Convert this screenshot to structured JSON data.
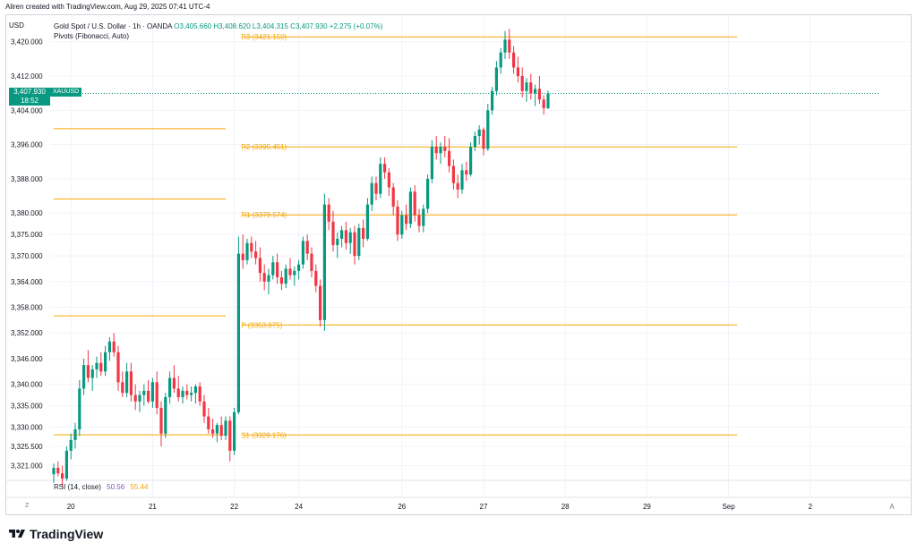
{
  "header": {
    "caption": "Aliren created with TradingView.com, Aug 29, 2025 07:41 UTC-4"
  },
  "legend": {
    "symbol_line": "Gold Spot / U.S. Dollar · 1h · OANDA",
    "ohlc": "O3,405.660  H3,408.620  L3,404.315  C3,407.930  +2.275 (+0.07%)",
    "indicator": "Pivots (Fibonacci, Auto)"
  },
  "currency": "USD",
  "price_tag": {
    "price": "3,407.930",
    "countdown": "18:52",
    "symbol": "XAUUSD"
  },
  "rsi": {
    "label": "RSI (14, close)",
    "value1": "50.56",
    "value2": "55.44"
  },
  "bottom": {
    "tz": "Z",
    "auto": "A"
  },
  "brand": {
    "name": "TradingView"
  },
  "colors": {
    "up": "#089981",
    "down": "#f23645",
    "pivot": "#f7a600",
    "last_price": "#089981",
    "grid": "#f0f3fa"
  },
  "chart_data": {
    "type": "candlestick",
    "title": "Gold Spot / U.S. Dollar · 1h · OANDA",
    "ylim": [
      3318,
      3426
    ],
    "y_ticks": [
      {
        "label": "3,420.000",
        "value": 3420
      },
      {
        "label": "3,412.000",
        "value": 3412
      },
      {
        "label": "3,404.000",
        "value": 3404
      },
      {
        "label": "3,396.000",
        "value": 3396
      },
      {
        "label": "3,388.000",
        "value": 3388
      },
      {
        "label": "3,380.000",
        "value": 3380
      },
      {
        "label": "3,375.000",
        "value": 3375
      },
      {
        "label": "3,370.000",
        "value": 3370
      },
      {
        "label": "3,364.000",
        "value": 3364
      },
      {
        "label": "3,358.000",
        "value": 3358
      },
      {
        "label": "3,352.000",
        "value": 3352
      },
      {
        "label": "3,346.000",
        "value": 3346
      },
      {
        "label": "3,340.000",
        "value": 3340
      },
      {
        "label": "3,335.000",
        "value": 3335
      },
      {
        "label": "3,330.000",
        "value": 3330
      },
      {
        "label": "3,325.500",
        "value": 3325.5
      },
      {
        "label": "3,321.000",
        "value": 3321
      }
    ],
    "x_ticks": [
      {
        "label": "20",
        "index": 4
      },
      {
        "label": "21",
        "index": 23
      },
      {
        "label": "22",
        "index": 42
      },
      {
        "label": "24",
        "index": 57
      },
      {
        "label": "26",
        "index": 81
      },
      {
        "label": "27",
        "index": 100
      },
      {
        "label": "28",
        "index": 119
      },
      {
        "label": "29",
        "index": 138
      },
      {
        "label": "Sep",
        "index": 157
      },
      {
        "label": "2",
        "index": 176
      },
      {
        "label": "A",
        "index": 195
      }
    ],
    "pivots": [
      {
        "label": "R3 (3421.150)",
        "value": 3421.15,
        "from": 44,
        "to": 159
      },
      {
        "label": "R2 (3395.451)",
        "value": 3395.451,
        "from": 44,
        "to": 159
      },
      {
        "label": "R1 (3379.574)",
        "value": 3379.574,
        "from": 44,
        "to": 159
      },
      {
        "label": "P (3353.875)",
        "value": 3353.875,
        "from": 44,
        "to": 159
      },
      {
        "label": "S1 (3328.176)",
        "value": 3328.176,
        "from": 44,
        "to": 159
      },
      {
        "label": "",
        "value": 3399.7,
        "from": 0,
        "to": 40
      },
      {
        "label": "",
        "value": 3383.3,
        "from": 0,
        "to": 40
      },
      {
        "label": "",
        "value": 3356.0,
        "from": 0,
        "to": 40
      },
      {
        "label": "",
        "value": 3328.2,
        "from": 0,
        "to": 40
      }
    ],
    "last_price": 3407.93,
    "candles": [
      [
        3319.0,
        3321.5,
        3317.0,
        3320.5
      ],
      [
        3320.5,
        3322.0,
        3318.5,
        3319.2
      ],
      [
        3319.2,
        3321.0,
        3316.0,
        3318.0
      ],
      [
        3318.0,
        3325.5,
        3317.5,
        3324.5
      ],
      [
        3324.5,
        3328.5,
        3322.5,
        3327.0
      ],
      [
        3327.0,
        3331.0,
        3325.0,
        3329.5
      ],
      [
        3329.5,
        3341.0,
        3328.0,
        3339.0
      ],
      [
        3339.0,
        3346.0,
        3337.5,
        3344.5
      ],
      [
        3344.5,
        3348.0,
        3340.5,
        3341.5
      ],
      [
        3341.5,
        3344.5,
        3338.5,
        3343.5
      ],
      [
        3343.5,
        3346.5,
        3341.5,
        3345.0
      ],
      [
        3345.0,
        3347.5,
        3342.0,
        3343.0
      ],
      [
        3343.0,
        3349.0,
        3342.0,
        3347.5
      ],
      [
        3347.5,
        3351.0,
        3345.5,
        3350.0
      ],
      [
        3350.0,
        3352.0,
        3346.5,
        3347.5
      ],
      [
        3347.5,
        3349.0,
        3338.5,
        3340.5
      ],
      [
        3340.5,
        3343.0,
        3337.0,
        3338.0
      ],
      [
        3338.0,
        3345.0,
        3337.0,
        3343.0
      ],
      [
        3343.0,
        3345.0,
        3336.0,
        3337.5
      ],
      [
        3337.5,
        3340.0,
        3334.0,
        3336.0
      ],
      [
        3336.0,
        3338.5,
        3333.5,
        3337.5
      ],
      [
        3337.5,
        3340.0,
        3335.0,
        3338.5
      ],
      [
        3338.5,
        3341.0,
        3335.5,
        3336.0
      ],
      [
        3336.0,
        3341.5,
        3334.5,
        3340.5
      ],
      [
        3340.5,
        3343.0,
        3333.0,
        3334.5
      ],
      [
        3334.5,
        3336.0,
        3325.5,
        3328.5
      ],
      [
        3328.5,
        3338.0,
        3327.5,
        3337.0
      ],
      [
        3337.0,
        3343.0,
        3335.5,
        3341.5
      ],
      [
        3341.5,
        3344.5,
        3338.0,
        3339.0
      ],
      [
        3339.0,
        3342.0,
        3336.0,
        3337.0
      ],
      [
        3337.0,
        3339.5,
        3335.5,
        3338.5
      ],
      [
        3338.5,
        3340.0,
        3336.5,
        3337.5
      ],
      [
        3337.5,
        3339.5,
        3336.0,
        3338.0
      ],
      [
        3338.0,
        3340.0,
        3335.5,
        3339.5
      ],
      [
        3339.5,
        3340.5,
        3335.0,
        3336.0
      ],
      [
        3336.0,
        3337.5,
        3331.0,
        3332.5
      ],
      [
        3332.5,
        3334.5,
        3328.5,
        3329.5
      ],
      [
        3329.5,
        3332.0,
        3327.5,
        3328.5
      ],
      [
        3328.5,
        3331.0,
        3326.5,
        3330.5
      ],
      [
        3330.5,
        3332.5,
        3327.0,
        3328.0
      ],
      [
        3328.0,
        3332.5,
        3327.0,
        3331.5
      ],
      [
        3331.5,
        3332.5,
        3322.0,
        3324.5
      ],
      [
        3324.5,
        3334.5,
        3323.5,
        3333.5
      ],
      [
        3333.5,
        3374.5,
        3333.0,
        3370.5
      ],
      [
        3370.5,
        3375.0,
        3367.0,
        3369.0
      ],
      [
        3369.0,
        3374.0,
        3368.0,
        3373.0
      ],
      [
        3373.0,
        3374.5,
        3369.5,
        3371.0
      ],
      [
        3371.0,
        3373.5,
        3368.0,
        3369.5
      ],
      [
        3369.5,
        3372.0,
        3364.0,
        3366.0
      ],
      [
        3366.0,
        3368.0,
        3362.0,
        3364.0
      ],
      [
        3364.0,
        3367.0,
        3361.0,
        3365.5
      ],
      [
        3365.5,
        3370.0,
        3364.5,
        3368.5
      ],
      [
        3368.5,
        3370.5,
        3363.5,
        3365.0
      ],
      [
        3365.0,
        3366.5,
        3362.0,
        3363.5
      ],
      [
        3363.5,
        3368.0,
        3362.5,
        3367.0
      ],
      [
        3367.0,
        3369.5,
        3364.5,
        3365.5
      ],
      [
        3365.5,
        3367.5,
        3363.0,
        3366.5
      ],
      [
        3366.5,
        3369.0,
        3364.5,
        3368.0
      ],
      [
        3368.0,
        3374.5,
        3367.0,
        3373.5
      ],
      [
        3373.5,
        3375.0,
        3369.0,
        3370.5
      ],
      [
        3370.5,
        3372.0,
        3365.0,
        3366.5
      ],
      [
        3366.5,
        3368.0,
        3361.5,
        3363.0
      ],
      [
        3363.0,
        3364.5,
        3353.5,
        3355.0
      ],
      [
        3355.0,
        3384.5,
        3352.5,
        3382.0
      ],
      [
        3382.0,
        3383.5,
        3376.0,
        3378.0
      ],
      [
        3378.0,
        3380.5,
        3371.0,
        3372.5
      ],
      [
        3372.5,
        3375.5,
        3369.5,
        3374.0
      ],
      [
        3374.0,
        3377.0,
        3372.0,
        3376.0
      ],
      [
        3376.0,
        3378.0,
        3371.5,
        3373.0
      ],
      [
        3373.0,
        3376.5,
        3370.5,
        3375.5
      ],
      [
        3375.5,
        3377.0,
        3368.0,
        3370.0
      ],
      [
        3370.0,
        3377.5,
        3369.0,
        3376.5
      ],
      [
        3376.5,
        3378.5,
        3372.0,
        3374.0
      ],
      [
        3374.0,
        3383.5,
        3373.5,
        3382.0
      ],
      [
        3382.0,
        3388.5,
        3380.5,
        3387.0
      ],
      [
        3387.0,
        3388.5,
        3383.0,
        3384.5
      ],
      [
        3384.5,
        3393.0,
        3383.5,
        3391.5
      ],
      [
        3391.5,
        3393.0,
        3388.0,
        3389.5
      ],
      [
        3389.5,
        3390.5,
        3384.0,
        3386.0
      ],
      [
        3386.0,
        3387.0,
        3379.5,
        3381.5
      ],
      [
        3381.5,
        3383.0,
        3373.5,
        3375.0
      ],
      [
        3375.0,
        3380.5,
        3374.0,
        3379.5
      ],
      [
        3379.5,
        3382.0,
        3376.0,
        3377.5
      ],
      [
        3377.5,
        3386.0,
        3376.5,
        3385.0
      ],
      [
        3385.0,
        3386.5,
        3378.0,
        3379.5
      ],
      [
        3379.5,
        3381.0,
        3375.5,
        3377.0
      ],
      [
        3377.0,
        3382.0,
        3375.5,
        3381.0
      ],
      [
        3381.0,
        3389.0,
        3380.0,
        3388.0
      ],
      [
        3388.0,
        3397.0,
        3387.0,
        3395.5
      ],
      [
        3395.5,
        3398.0,
        3392.5,
        3394.0
      ],
      [
        3394.0,
        3396.5,
        3391.5,
        3395.5
      ],
      [
        3395.5,
        3398.0,
        3393.0,
        3394.5
      ],
      [
        3394.5,
        3397.5,
        3389.5,
        3391.0
      ],
      [
        3391.0,
        3392.5,
        3385.5,
        3387.0
      ],
      [
        3387.0,
        3389.0,
        3383.5,
        3385.5
      ],
      [
        3385.5,
        3391.5,
        3384.5,
        3390.0
      ],
      [
        3390.0,
        3392.0,
        3387.5,
        3389.0
      ],
      [
        3389.0,
        3396.5,
        3388.5,
        3395.5
      ],
      [
        3395.5,
        3399.0,
        3394.5,
        3398.0
      ],
      [
        3398.0,
        3400.5,
        3396.0,
        3399.5
      ],
      [
        3399.5,
        3400.0,
        3393.5,
        3395.0
      ],
      [
        3395.0,
        3405.5,
        3394.5,
        3404.0
      ],
      [
        3404.0,
        3409.5,
        3403.0,
        3408.5
      ],
      [
        3408.5,
        3415.5,
        3407.5,
        3414.0
      ],
      [
        3414.0,
        3418.5,
        3412.5,
        3417.5
      ],
      [
        3417.5,
        3422.5,
        3416.0,
        3420.5
      ],
      [
        3420.5,
        3423.0,
        3416.0,
        3417.5
      ],
      [
        3417.5,
        3419.0,
        3412.5,
        3414.0
      ],
      [
        3414.0,
        3416.5,
        3410.5,
        3412.0
      ],
      [
        3412.0,
        3414.0,
        3407.0,
        3408.5
      ],
      [
        3408.5,
        3411.5,
        3406.0,
        3410.5
      ],
      [
        3410.5,
        3412.5,
        3406.5,
        3408.0
      ],
      [
        3408.0,
        3410.0,
        3405.0,
        3409.0
      ],
      [
        3409.0,
        3412.0,
        3405.5,
        3406.5
      ],
      [
        3406.5,
        3407.5,
        3403.0,
        3404.5
      ],
      [
        3404.5,
        3408.6,
        3404.3,
        3407.9
      ]
    ]
  }
}
